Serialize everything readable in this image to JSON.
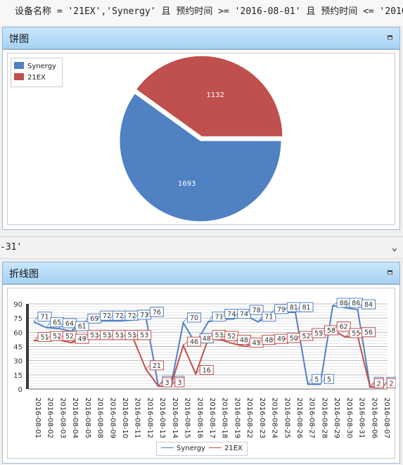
{
  "filter": {
    "text": "设备名称 = '21EX','Synergy' 且 预约时间 >= '2016-08-01' 且 预约时间 <= '2016-08-31'",
    "continuation": "-31'"
  },
  "pie_panel": {
    "title": "饼图"
  },
  "line_panel": {
    "title": "折线图"
  },
  "icons": {
    "minimize": "minimize-icon",
    "expand": "chevron-down-icon"
  },
  "colors": {
    "synergy": "#4f81c3",
    "ex21": "#c0504d"
  },
  "chart_data": [
    {
      "type": "pie",
      "title": "",
      "categories": [
        "Synergy",
        "21EX"
      ],
      "values": [
        1693,
        1132
      ],
      "legend": "top-left"
    },
    {
      "type": "line",
      "title": "",
      "xlabel": "",
      "ylabel": "",
      "categories": [
        "2016-08-01",
        "2016-08-02",
        "2016-08-03",
        "2016-08-04",
        "2016-08-05",
        "2016-08-08",
        "2016-08-09",
        "2016-08-10",
        "2016-08-11",
        "2016-08-12",
        "2016-08-13",
        "2016-08-14",
        "2016-08-15",
        "2016-08-16",
        "2016-08-17",
        "2016-08-18",
        "2016-08-19",
        "2016-08-22",
        "2016-08-23",
        "2016-08-24",
        "2016-08-25",
        "2016-08-26",
        "2016-08-27",
        "2016-08-28",
        "2016-08-29",
        "2016-08-30",
        "2016-08-31",
        "2016-08-06",
        "2016-08-07"
      ],
      "series": [
        {
          "name": "Synergy",
          "values": [
            71,
            65,
            64,
            61,
            69,
            72,
            72,
            72,
            73,
            76,
            3,
            3,
            70,
            48,
            71,
            74,
            74,
            78,
            71,
            79,
            81,
            81,
            5,
            5,
            88,
            86,
            84,
            2,
            2
          ]
        },
        {
          "name": "21EX",
          "values": [
            51,
            52,
            52,
            49,
            53,
            53,
            53,
            53,
            53,
            21,
            3,
            3,
            46,
            16,
            53,
            52,
            48,
            45,
            48,
            49,
            50,
            52,
            55,
            58,
            62,
            55,
            56,
            2,
            2
          ]
        }
      ],
      "ylim": [
        0,
        90
      ],
      "yticks": [
        0,
        15,
        30,
        45,
        60,
        75,
        90
      ],
      "grid": true,
      "legend": "bottom-center"
    }
  ]
}
